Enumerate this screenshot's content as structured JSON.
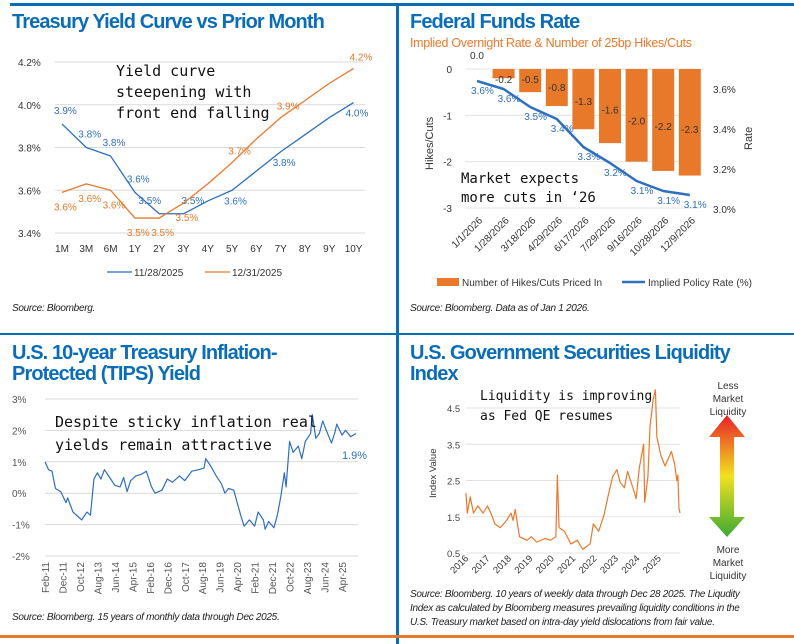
{
  "panels": {
    "yield": {
      "title": "Treasury Yield Curve vs Prior Month",
      "source": "Source: Bloomberg.",
      "note": [
        "Yield curve",
        "steepening with",
        "front end falling"
      ]
    },
    "fed": {
      "title": "Federal Funds Rate",
      "subtitle": "Implied Overnight Rate & Number of 25bp Hikes/Cuts",
      "source": "Source: Bloomberg. Data as of Jan 1 2026.",
      "note": [
        "Market expects",
        "more cuts in ‘26"
      ]
    },
    "tips": {
      "title": [
        "U.S. 10-year Treasury Inflation-",
        "Protected (TIPS) Yield"
      ],
      "source": "Source: Bloomberg. 15 years of monthly data through Dec 2025.",
      "note": [
        "Despite sticky inflation real",
        "yields remain attractive"
      ],
      "last_label": "1.9%"
    },
    "liq": {
      "title": [
        "U.S. Government Securities Liquidity",
        "Index"
      ],
      "source": [
        "Source: Bloomberg. 10 years of weekly data through Dec 28 2025. The Liqudity",
        "Index as calculated by Bloomberg measures prevailing liquidity conditions in the",
        "U.S. Treasury market based on intra-day yield dislocations from fair value."
      ],
      "note": [
        "Liquidity is improving",
        "as Fed QE resumes"
      ],
      "arrow_top": [
        "Less",
        "Market",
        "Liquidity"
      ],
      "arrow_bottom": [
        "More",
        "Market",
        "Liquidity"
      ]
    }
  },
  "colors": {
    "blue": "#0b6db8",
    "orange": "#e8792b",
    "line_blue": "#2e6fbf",
    "arrow_top": "#e8202a",
    "arrow_mid": "#f2e21c",
    "arrow_bottom": "#3aaa35"
  },
  "chart_data": [
    {
      "type": "line",
      "categories": [
        "1M",
        "3M",
        "6M",
        "1Y",
        "2Y",
        "3Y",
        "4Y",
        "5Y",
        "6Y",
        "7Y",
        "8Y",
        "9Y",
        "10Y"
      ],
      "yticks": [
        "3.4%",
        "3.6%",
        "3.8%",
        "4.0%",
        "4.2%"
      ],
      "ylim": [
        3.4,
        4.2
      ],
      "grid": true,
      "legend": "bottom",
      "series": [
        {
          "name": "11/28/2025",
          "color": "#2e6fbf",
          "values": [
            3.91,
            3.8,
            3.76,
            3.59,
            3.49,
            3.49,
            3.55,
            3.6,
            3.69,
            3.78,
            3.86,
            3.94,
            4.01
          ],
          "labels": [
            "3.9%",
            "3.8%",
            "3.8%",
            "3.6%",
            "3.5%",
            "3.5%",
            null,
            "3.6%",
            null,
            "3.8%",
            null,
            null,
            "4.0%"
          ]
        },
        {
          "name": "12/31/2025",
          "color": "#e8792b",
          "values": [
            3.59,
            3.63,
            3.6,
            3.47,
            3.47,
            3.54,
            3.63,
            3.73,
            3.84,
            3.94,
            4.02,
            4.1,
            4.17
          ],
          "labels": [
            "3.6%",
            "3.6%",
            "3.6%",
            "3.5%",
            "3.5%",
            "3.5%",
            null,
            "3.7%",
            null,
            "3.9%",
            null,
            null,
            "4.2%"
          ]
        }
      ]
    },
    {
      "type": "bar+line",
      "categories": [
        "1/1/2026",
        "1/28/2026",
        "3/18/2026",
        "4/29/2026",
        "6/17/2026",
        "7/29/2026",
        "9/16/2026",
        "10/28/2026",
        "12/9/2026"
      ],
      "ylabel": "Hikes/Cuts",
      "y2label": "Rate",
      "ylim": [
        -3,
        0
      ],
      "yticks": [
        "0",
        "-1",
        "-2",
        "-3"
      ],
      "y2lim": [
        3.0,
        3.6
      ],
      "y2ticks": [
        "3.0%",
        "3.2%",
        "3.4%",
        "3.6%"
      ],
      "legend": "bottom",
      "series": [
        {
          "name": "Number of Hikes/Cuts Priced In",
          "type": "bar",
          "axis": "left",
          "values": [
            0.0,
            -0.2,
            -0.5,
            -0.8,
            -1.3,
            -1.6,
            -2.0,
            -2.2,
            -2.3
          ],
          "labels": [
            "0.0",
            "-0.2",
            "-0.5",
            "-0.8",
            "-1.3",
            "-1.6",
            "-2.0",
            "-2.2",
            "-2.3"
          ]
        },
        {
          "name": "Implied Policy Rate (%)",
          "type": "line",
          "axis": "right",
          "values": [
            3.64,
            3.6,
            3.51,
            3.45,
            3.31,
            3.23,
            3.14,
            3.09,
            3.07
          ],
          "labels": [
            "3.6%",
            "3.6%",
            "3.5%",
            "3.4%",
            "3.3%",
            "3.2%",
            "3.1%",
            "3.1%",
            "3.1%"
          ]
        }
      ]
    },
    {
      "type": "line",
      "ylim": [
        -2,
        3
      ],
      "yticks": [
        "-2%",
        "-1%",
        "0%",
        "1%",
        "2%",
        "3%"
      ],
      "grid": true,
      "xticks": [
        "Feb-11",
        "Dec-11",
        "Oct-12",
        "Aug-13",
        "Jun-14",
        "Apr-15",
        "Feb-16",
        "Dec-16",
        "Oct-17",
        "Aug-18",
        "Jun-19",
        "Apr-20",
        "Feb-21",
        "Dec-21",
        "Oct-22",
        "Aug-23",
        "Jun-24",
        "Apr-25"
      ],
      "points": [
        [
          "2011-02",
          1.0
        ],
        [
          "2011-04",
          0.75
        ],
        [
          "2011-06",
          0.7
        ],
        [
          "2011-08",
          0.15
        ],
        [
          "2011-11",
          0.05
        ],
        [
          "2012-02",
          -0.3
        ],
        [
          "2012-03",
          -0.15
        ],
        [
          "2012-06",
          -0.6
        ],
        [
          "2012-09",
          -0.75
        ],
        [
          "2012-11",
          -0.85
        ],
        [
          "2013-02",
          -0.6
        ],
        [
          "2013-04",
          -0.7
        ],
        [
          "2013-06",
          0.45
        ],
        [
          "2013-08",
          0.65
        ],
        [
          "2013-10",
          0.45
        ],
        [
          "2013-12",
          0.75
        ],
        [
          "2014-03",
          0.5
        ],
        [
          "2014-06",
          0.25
        ],
        [
          "2014-09",
          0.2
        ],
        [
          "2014-11",
          0.5
        ],
        [
          "2015-01",
          0.05
        ],
        [
          "2015-03",
          0.4
        ],
        [
          "2015-06",
          0.55
        ],
        [
          "2015-09",
          0.6
        ],
        [
          "2015-12",
          0.7
        ],
        [
          "2016-03",
          0.2
        ],
        [
          "2016-05",
          0.0
        ],
        [
          "2016-09",
          0.1
        ],
        [
          "2016-12",
          0.45
        ],
        [
          "2017-03",
          0.35
        ],
        [
          "2017-07",
          0.55
        ],
        [
          "2017-10",
          0.4
        ],
        [
          "2018-02",
          0.7
        ],
        [
          "2018-06",
          0.75
        ],
        [
          "2018-09",
          0.8
        ],
        [
          "2018-10",
          1.1
        ],
        [
          "2019-01",
          0.85
        ],
        [
          "2019-04",
          0.55
        ],
        [
          "2019-07",
          0.3
        ],
        [
          "2019-09",
          0.0
        ],
        [
          "2019-11",
          0.15
        ],
        [
          "2020-02",
          0.1
        ],
        [
          "2020-04",
          -0.3
        ],
        [
          "2020-06",
          -0.7
        ],
        [
          "2020-08",
          -1.05
        ],
        [
          "2020-11",
          -0.85
        ],
        [
          "2021-02",
          -1.05
        ],
        [
          "2021-04",
          -0.6
        ],
        [
          "2021-07",
          -0.85
        ],
        [
          "2021-08",
          -1.15
        ],
        [
          "2021-10",
          -0.9
        ],
        [
          "2022-01",
          -1.1
        ],
        [
          "2022-03",
          -0.7
        ],
        [
          "2022-05",
          -0.1
        ],
        [
          "2022-07",
          0.65
        ],
        [
          "2022-08",
          0.2
        ],
        [
          "2022-10",
          1.65
        ],
        [
          "2022-12",
          1.3
        ],
        [
          "2023-03",
          1.5
        ],
        [
          "2023-05",
          1.1
        ],
        [
          "2023-07",
          1.65
        ],
        [
          "2023-10",
          1.9
        ],
        [
          "2023-11",
          2.5
        ],
        [
          "2024-01",
          1.75
        ],
        [
          "2024-03",
          1.9
        ],
        [
          "2024-05",
          2.3
        ],
        [
          "2024-07",
          2.0
        ],
        [
          "2024-10",
          1.6
        ],
        [
          "2024-12",
          1.95
        ],
        [
          "2025-01",
          2.2
        ],
        [
          "2025-04",
          1.85
        ],
        [
          "2025-06",
          2.0
        ],
        [
          "2025-09",
          1.8
        ],
        [
          "2025-12",
          1.9
        ]
      ]
    },
    {
      "type": "line",
      "ylabel": "Index Value",
      "ylim": [
        0.5,
        4.5
      ],
      "yticks": [
        "0.5",
        "1.5",
        "2.5",
        "3.5",
        "4.5"
      ],
      "grid": true,
      "xticks": [
        "2016",
        "2017",
        "2018",
        "2019",
        "2020",
        "2021",
        "2022",
        "2023",
        "2024",
        "2025"
      ],
      "points": [
        [
          2016.0,
          2.15
        ],
        [
          2016.06,
          1.6
        ],
        [
          2016.2,
          2.05
        ],
        [
          2016.35,
          1.6
        ],
        [
          2016.55,
          1.8
        ],
        [
          2016.8,
          1.6
        ],
        [
          2017.0,
          1.8
        ],
        [
          2017.2,
          1.55
        ],
        [
          2017.35,
          1.3
        ],
        [
          2017.6,
          1.2
        ],
        [
          2017.9,
          1.4
        ],
        [
          2018.1,
          1.6
        ],
        [
          2018.2,
          1.4
        ],
        [
          2018.3,
          1.7
        ],
        [
          2018.5,
          0.95
        ],
        [
          2018.85,
          0.85
        ],
        [
          2019.05,
          0.95
        ],
        [
          2019.3,
          0.8
        ],
        [
          2019.7,
          0.9
        ],
        [
          2019.95,
          0.85
        ],
        [
          2020.2,
          0.95
        ],
        [
          2020.27,
          2.65
        ],
        [
          2020.35,
          1.2
        ],
        [
          2020.6,
          1.1
        ],
        [
          2020.9,
          0.75
        ],
        [
          2021.2,
          0.85
        ],
        [
          2021.45,
          0.6
        ],
        [
          2021.8,
          0.75
        ],
        [
          2021.95,
          1.3
        ],
        [
          2022.2,
          1.1
        ],
        [
          2022.45,
          1.55
        ],
        [
          2022.65,
          2.1
        ],
        [
          2022.85,
          2.6
        ],
        [
          2023.05,
          2.8
        ],
        [
          2023.2,
          2.45
        ],
        [
          2023.4,
          2.3
        ],
        [
          2023.55,
          2.75
        ],
        [
          2023.8,
          2.3
        ],
        [
          2023.95,
          2.0
        ],
        [
          2024.1,
          2.85
        ],
        [
          2024.3,
          3.5
        ],
        [
          2024.35,
          1.9
        ],
        [
          2024.5,
          2.6
        ],
        [
          2024.6,
          4.0
        ],
        [
          2024.75,
          4.75
        ],
        [
          2024.85,
          5.0
        ],
        [
          2024.92,
          3.7
        ],
        [
          2025.1,
          3.2
        ],
        [
          2025.3,
          2.9
        ],
        [
          2025.45,
          3.1
        ],
        [
          2025.6,
          3.3
        ],
        [
          2025.75,
          2.95
        ],
        [
          2025.85,
          2.5
        ],
        [
          2025.9,
          2.65
        ],
        [
          2025.95,
          1.75
        ],
        [
          2026.0,
          1.6
        ]
      ]
    }
  ]
}
